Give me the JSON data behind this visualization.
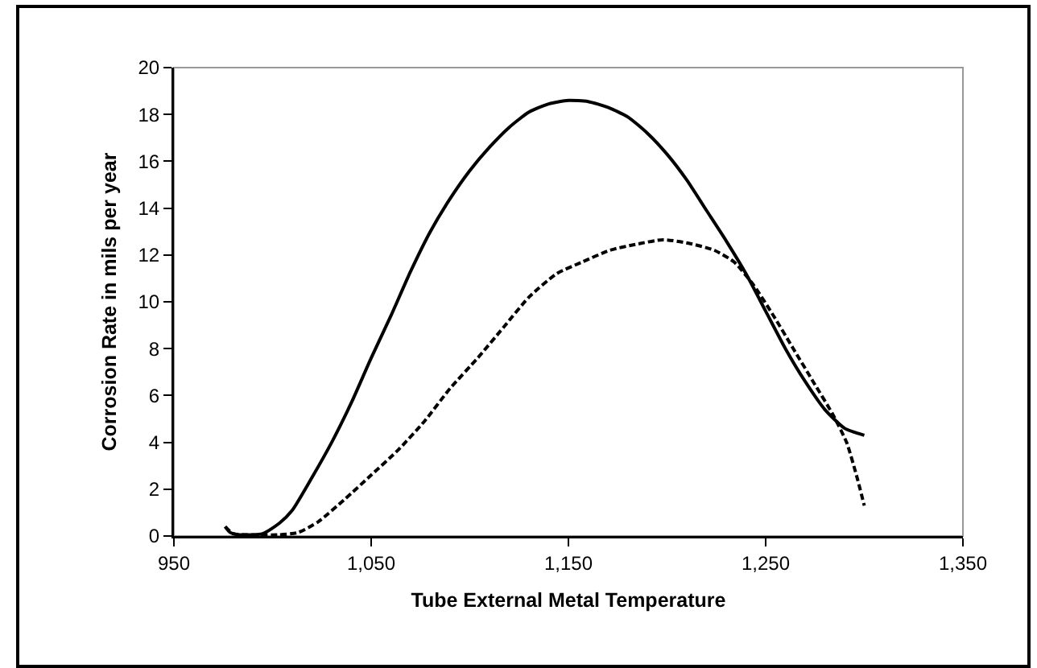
{
  "chart_data": {
    "type": "line",
    "xlabel": "Tube External Metal Temperature",
    "ylabel": "Corrosion Rate in mils per year",
    "xlim": [
      950,
      1350
    ],
    "xticks": [
      {
        "value": 950,
        "label": "950"
      },
      {
        "value": 1050,
        "label": "1,050"
      },
      {
        "value": 1150,
        "label": "1,150"
      },
      {
        "value": 1250,
        "label": "1,250"
      },
      {
        "value": 1350,
        "label": "1,350"
      }
    ],
    "ylim": [
      0,
      20
    ],
    "yticks": [
      0,
      2,
      4,
      6,
      8,
      10,
      12,
      14,
      16,
      18,
      20
    ],
    "marker": "none",
    "series": [
      {
        "color": "#000000",
        "line_style": "solid",
        "x": [
          976,
          978.5,
          983.5,
          995,
          1003.5,
          1010,
          1020,
          1030,
          1040,
          1050,
          1060,
          1070,
          1080,
          1090,
          1100,
          1110,
          1120,
          1130,
          1140,
          1150,
          1160,
          1170,
          1180,
          1190,
          1200,
          1210,
          1220,
          1230,
          1240,
          1250,
          1260,
          1270,
          1280,
          1290,
          1300
        ],
        "values": [
          0.4,
          0.15,
          0.05,
          0.1,
          0.55,
          1.1,
          2.5,
          4.0,
          5.7,
          7.6,
          9.4,
          11.3,
          13.0,
          14.4,
          15.6,
          16.6,
          17.45,
          18.1,
          18.45,
          18.6,
          18.55,
          18.3,
          17.9,
          17.2,
          16.3,
          15.2,
          13.9,
          12.6,
          11.2,
          9.6,
          8.0,
          6.6,
          5.4,
          4.6,
          4.3
        ]
      },
      {
        "color": "#000000",
        "line_style": "dashed",
        "x": [
          976,
          980,
          990,
          1003,
          1013,
          1023,
          1037,
          1050,
          1064,
          1077,
          1090,
          1104,
          1117,
          1130,
          1144,
          1157,
          1171,
          1184,
          1198,
          1211,
          1224,
          1234,
          1244,
          1254,
          1264,
          1274,
          1284,
          1291,
          1296,
          1300
        ],
        "values": [
          0.4,
          0.1,
          0.05,
          0.05,
          0.15,
          0.6,
          1.6,
          2.6,
          3.7,
          4.9,
          6.3,
          7.6,
          8.9,
          10.2,
          11.2,
          11.7,
          12.2,
          12.45,
          12.65,
          12.5,
          12.2,
          11.7,
          10.7,
          9.4,
          8.0,
          6.6,
          5.2,
          4.0,
          2.6,
          1.3
        ]
      }
    ]
  }
}
